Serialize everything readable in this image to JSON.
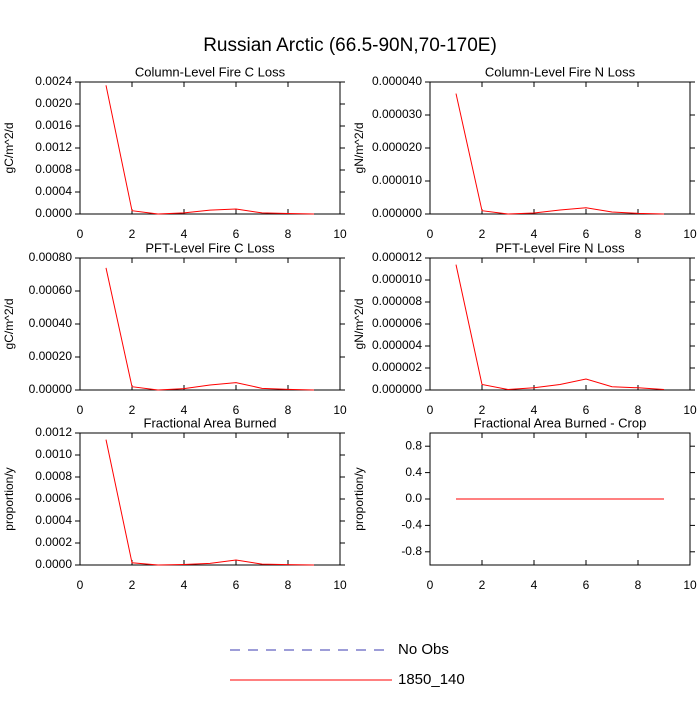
{
  "title": "Russian Arctic (66.5-90N,70-170E)",
  "legend": [
    {
      "name": "No Obs",
      "color": "#3b3bb0",
      "dashed": true
    },
    {
      "name": "1850_140",
      "color": "#ff0000",
      "dashed": false
    }
  ],
  "chart_data": [
    {
      "type": "line",
      "title": "Column-Level Fire C Loss",
      "y_label": "gC/m^2/d",
      "x": [
        1,
        2,
        3,
        4,
        5,
        6,
        7,
        8,
        9
      ],
      "xlim": [
        0,
        10
      ],
      "xticks": [
        0,
        2,
        4,
        6,
        8,
        10
      ],
      "ylim": [
        0,
        0.0024
      ],
      "yticks": [
        {
          "value": 0,
          "label": "0.0000"
        },
        {
          "value": 0.0004,
          "label": "0.0004"
        },
        {
          "value": 0.0008,
          "label": "0.0008"
        },
        {
          "value": 0.0012,
          "label": "0.0012"
        },
        {
          "value": 0.0016,
          "label": "0.0016"
        },
        {
          "value": 0.002,
          "label": "0.0020"
        },
        {
          "value": 0.0024,
          "label": "0.0024"
        }
      ],
      "series": [
        {
          "name": "1850_140",
          "color": "#ff0000",
          "values": [
            0.00234,
            6e-05,
            0.0,
            2e-05,
            7e-05,
            9e-05,
            2e-05,
            1e-05,
            0.0
          ]
        }
      ]
    },
    {
      "type": "line",
      "title": "Column-Level Fire N Loss",
      "y_label": "gN/m^2/d",
      "x": [
        1,
        2,
        3,
        4,
        5,
        6,
        7,
        8,
        9
      ],
      "xlim": [
        0,
        10
      ],
      "xticks": [
        0,
        2,
        4,
        6,
        8,
        10
      ],
      "ylim": [
        0,
        4e-05
      ],
      "yticks": [
        {
          "value": 0,
          "label": "0.000000"
        },
        {
          "value": 1e-05,
          "label": "0.000010"
        },
        {
          "value": 2e-05,
          "label": "0.000020"
        },
        {
          "value": 3e-05,
          "label": "0.000030"
        },
        {
          "value": 4e-05,
          "label": "0.000040"
        }
      ],
      "series": [
        {
          "name": "1850_140",
          "color": "#ff0000",
          "values": [
            3.65e-05,
            1e-06,
            0.0,
            3e-07,
            1.2e-06,
            1.9e-06,
            6e-07,
            2e-07,
            0.0
          ]
        }
      ]
    },
    {
      "type": "line",
      "title": "PFT-Level Fire C Loss",
      "y_label": "gC/m^2/d",
      "x": [
        1,
        2,
        3,
        4,
        5,
        6,
        7,
        8,
        9
      ],
      "xlim": [
        0,
        10
      ],
      "xticks": [
        0,
        2,
        4,
        6,
        8,
        10
      ],
      "ylim": [
        0,
        0.0008
      ],
      "yticks": [
        {
          "value": 0,
          "label": "0.00000"
        },
        {
          "value": 0.0002,
          "label": "0.00020"
        },
        {
          "value": 0.0004,
          "label": "0.00040"
        },
        {
          "value": 0.0006,
          "label": "0.00060"
        },
        {
          "value": 0.0008,
          "label": "0.00080"
        }
      ],
      "series": [
        {
          "name": "1850_140",
          "color": "#ff0000",
          "values": [
            0.00074,
            2e-05,
            0.0,
            8e-06,
            3e-05,
            4.5e-05,
            1e-05,
            4e-06,
            0.0
          ]
        }
      ]
    },
    {
      "type": "line",
      "title": "PFT-Level Fire N Loss",
      "y_label": "gN/m^2/d",
      "x": [
        1,
        2,
        3,
        4,
        5,
        6,
        7,
        8,
        9
      ],
      "xlim": [
        0,
        10
      ],
      "xticks": [
        0,
        2,
        4,
        6,
        8,
        10
      ],
      "ylim": [
        0,
        1.2e-05
      ],
      "yticks": [
        {
          "value": 0,
          "label": "0.000000"
        },
        {
          "value": 2e-06,
          "label": "0.000002"
        },
        {
          "value": 4e-06,
          "label": "0.000004"
        },
        {
          "value": 6e-06,
          "label": "0.000006"
        },
        {
          "value": 8e-06,
          "label": "0.000008"
        },
        {
          "value": 1e-05,
          "label": "0.000010"
        },
        {
          "value": 1.2e-05,
          "label": "0.000012"
        }
      ],
      "series": [
        {
          "name": "1850_140",
          "color": "#ff0000",
          "values": [
            1.14e-05,
            5e-07,
            5e-08,
            2e-07,
            5e-07,
            1e-06,
            3e-07,
            2e-07,
            5e-08
          ]
        }
      ]
    },
    {
      "type": "line",
      "title": "Fractional Area Burned",
      "y_label": "proportion/y",
      "x": [
        1,
        2,
        3,
        4,
        5,
        6,
        7,
        8,
        9
      ],
      "xlim": [
        0,
        10
      ],
      "xticks": [
        0,
        2,
        4,
        6,
        8,
        10
      ],
      "ylim": [
        0,
        0.0012
      ],
      "yticks": [
        {
          "value": 0,
          "label": "0.0000"
        },
        {
          "value": 0.0002,
          "label": "0.0002"
        },
        {
          "value": 0.0004,
          "label": "0.0004"
        },
        {
          "value": 0.0006,
          "label": "0.0006"
        },
        {
          "value": 0.0008,
          "label": "0.0008"
        },
        {
          "value": 0.001,
          "label": "0.0010"
        },
        {
          "value": 0.0012,
          "label": "0.0012"
        }
      ],
      "series": [
        {
          "name": "1850_140",
          "color": "#ff0000",
          "values": [
            0.00114,
            2e-05,
            0.0,
            5e-06,
            1.5e-05,
            4.5e-05,
            8e-06,
            3e-06,
            0.0
          ]
        }
      ]
    },
    {
      "type": "line",
      "title": "Fractional Area Burned - Crop",
      "y_label": "proportion/y",
      "x": [
        1,
        2,
        3,
        4,
        5,
        6,
        7,
        8,
        9
      ],
      "xlim": [
        0,
        10
      ],
      "xticks": [
        0,
        2,
        4,
        6,
        8,
        10
      ],
      "ylim": [
        -1,
        1
      ],
      "yticks": [
        -0.8,
        -0.4,
        {
          "value": 0,
          "label": "0.0"
        },
        0.4,
        0.8
      ],
      "series": [
        {
          "name": "1850_140",
          "color": "#ff0000",
          "values": [
            0,
            0,
            0,
            0,
            0,
            0,
            0,
            0,
            0
          ]
        }
      ]
    }
  ]
}
